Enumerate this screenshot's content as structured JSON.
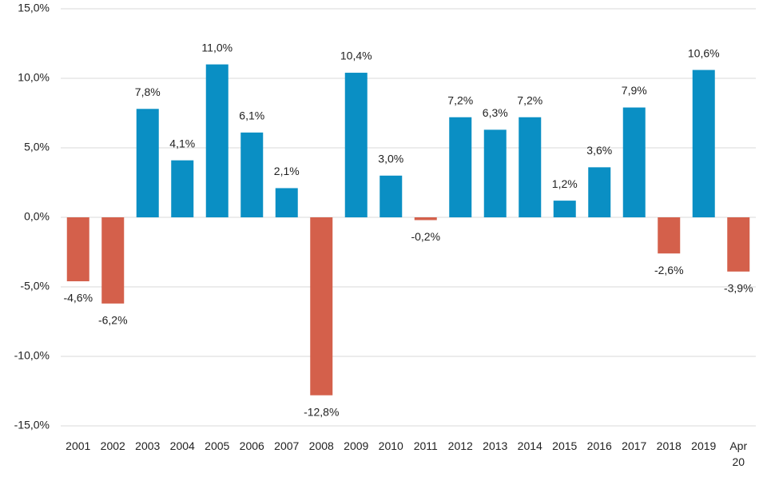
{
  "chart_data": {
    "type": "bar",
    "categories": [
      "2001",
      "2002",
      "2003",
      "2004",
      "2005",
      "2006",
      "2007",
      "2008",
      "2009",
      "2010",
      "2011",
      "2012",
      "2013",
      "2014",
      "2015",
      "2016",
      "2017",
      "2018",
      "2019",
      "Apr 20"
    ],
    "values": [
      -4.6,
      -6.2,
      7.8,
      4.1,
      11.0,
      6.1,
      2.1,
      -12.8,
      10.4,
      3.0,
      -0.2,
      7.2,
      6.3,
      7.2,
      1.2,
      3.6,
      7.9,
      -2.6,
      10.6,
      -3.9
    ],
    "value_labels": [
      "-4,6%",
      "-6,2%",
      "7,8%",
      "4,1%",
      "11,0%",
      "6,1%",
      "2,1%",
      "-12,8%",
      "10,4%",
      "3,0%",
      "-0,2%",
      "7,2%",
      "6,3%",
      "7,2%",
      "1,2%",
      "3,6%",
      "7,9%",
      "-2,6%",
      "10,6%",
      "-3,9%"
    ],
    "color": "#0a8fc4",
    "negative_color": "#d4604b",
    "ylim": [
      -15,
      15
    ],
    "yticks": [
      {
        "value": -15,
        "label": "-15,0%"
      },
      {
        "value": -10,
        "label": "-10,0%"
      },
      {
        "value": -5,
        "label": "-5,0%"
      },
      {
        "value": 0,
        "label": "0,0%"
      },
      {
        "value": 5,
        "label": "5,0%"
      },
      {
        "value": 10,
        "label": "10,0%"
      },
      {
        "value": 15,
        "label": "15,0%"
      }
    ],
    "grid": true
  }
}
